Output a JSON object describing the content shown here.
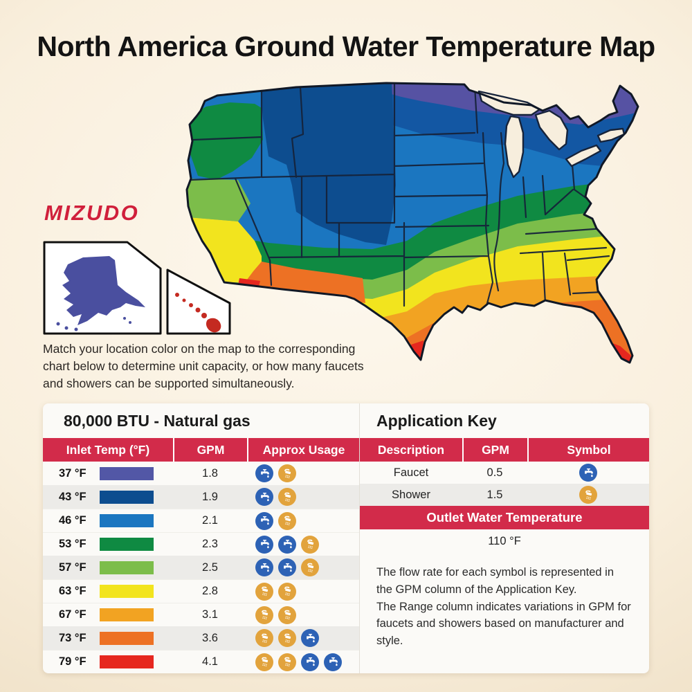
{
  "page": {
    "title": "North America Ground Water Temperature Map"
  },
  "brand": {
    "name": "MIZUDO",
    "color": "#d01f3b"
  },
  "map": {
    "caption": "Match your location color on the map to the corresponding chart below to determine unit capacity, or how many faucets and showers can be supported simultaneously.",
    "zone_colors": {
      "37F": "#5257a6",
      "43F": "#0d4d8f",
      "46F": "#1b76c0",
      "53F": "#0f8a42",
      "57F": "#7cbd4a",
      "63F": "#f2e41e",
      "67F": "#f2a322",
      "73F": "#ed7124",
      "79F": "#e6271f"
    }
  },
  "btu_table": {
    "title": "80,000 BTU - Natural gas",
    "headers": [
      "Inlet Temp (°F)",
      "GPM",
      "Approx Usage"
    ],
    "rows": [
      {
        "temp": "37 °F",
        "color": "#5257a6",
        "gpm": "1.8",
        "usage": [
          "faucet",
          "shower"
        ]
      },
      {
        "temp": "43 °F",
        "color": "#0d4d8f",
        "gpm": "1.9",
        "usage": [
          "faucet",
          "shower"
        ]
      },
      {
        "temp": "46 °F",
        "color": "#1b76c0",
        "gpm": "2.1",
        "usage": [
          "faucet",
          "shower"
        ]
      },
      {
        "temp": "53 °F",
        "color": "#0f8a42",
        "gpm": "2.3",
        "usage": [
          "faucet",
          "faucet",
          "shower"
        ]
      },
      {
        "temp": "57 °F",
        "color": "#7cbd4a",
        "gpm": "2.5",
        "usage": [
          "faucet",
          "faucet",
          "shower"
        ]
      },
      {
        "temp": "63 °F",
        "color": "#f2e41e",
        "gpm": "2.8",
        "usage": [
          "shower",
          "shower"
        ]
      },
      {
        "temp": "67 °F",
        "color": "#f2a322",
        "gpm": "3.1",
        "usage": [
          "shower",
          "shower"
        ]
      },
      {
        "temp": "73 °F",
        "color": "#ed7124",
        "gpm": "3.6",
        "usage": [
          "shower",
          "shower",
          "faucet"
        ]
      },
      {
        "temp": "79 °F",
        "color": "#e6271f",
        "gpm": "4.1",
        "usage": [
          "shower",
          "shower",
          "faucet",
          "faucet"
        ]
      }
    ]
  },
  "application_key": {
    "title": "Application Key",
    "headers": [
      "Description",
      "GPM",
      "Symbol"
    ],
    "rows": [
      {
        "description": "Faucet",
        "gpm": "0.5",
        "symbol": "faucet"
      },
      {
        "description": "Shower",
        "gpm": "1.5",
        "symbol": "shower"
      }
    ],
    "outlet": {
      "label": "Outlet Water Temperature",
      "value": "110 °F"
    },
    "note_lines": [
      "The flow rate for each symbol is represented in the GPM column of the Application Key.",
      "The Range column indicates variations in GPM for faucets and showers based on manufacturer and style."
    ]
  },
  "theme": {
    "header_red": "#d22b4a",
    "faucet_blue": "#2d62b5",
    "shower_amber": "#e2a33c",
    "row_shade": "#ecebe8"
  }
}
